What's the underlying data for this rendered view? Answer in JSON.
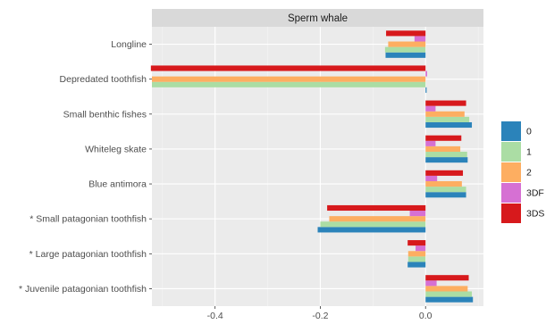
{
  "chart_data": {
    "type": "bar",
    "orientation": "horizontal",
    "facet_title": "Sperm whale",
    "categories": [
      "Longline",
      "Depredated toothfish",
      "Small benthic fishes",
      "Whiteleg skate",
      "Blue antimora",
      "* Small patagonian toothfish",
      "* Large patagonian toothfish",
      "* Juvenile patagonian toothfish"
    ],
    "xlim": [
      -0.52,
      0.11
    ],
    "x_ticks": [
      -0.4,
      -0.2,
      0.0
    ],
    "x_tick_labels": [
      "-0.4",
      "-0.2",
      "0.0"
    ],
    "grid": true,
    "legend_position": "right",
    "series": [
      {
        "name": "0",
        "color": "#2b83ba",
        "values": [
          -0.076,
          0.002,
          0.088,
          0.08,
          0.077,
          -0.205,
          -0.034,
          0.09
        ]
      },
      {
        "name": "1",
        "color": "#abdda4",
        "values": [
          -0.077,
          -0.52,
          0.083,
          0.079,
          0.077,
          -0.2,
          -0.033,
          0.088
        ]
      },
      {
        "name": "2",
        "color": "#fdae61",
        "values": [
          -0.071,
          -0.52,
          0.074,
          0.066,
          0.069,
          -0.183,
          -0.033,
          0.08
        ]
      },
      {
        "name": "3DF",
        "color": "#d670d3",
        "values": [
          -0.021,
          0.003,
          0.019,
          0.019,
          0.022,
          -0.03,
          -0.019,
          0.021
        ]
      },
      {
        "name": "3DS",
        "color": "#d7191c",
        "values": [
          -0.075,
          -0.522,
          0.077,
          0.068,
          0.071,
          -0.187,
          -0.034,
          0.082
        ]
      }
    ]
  }
}
